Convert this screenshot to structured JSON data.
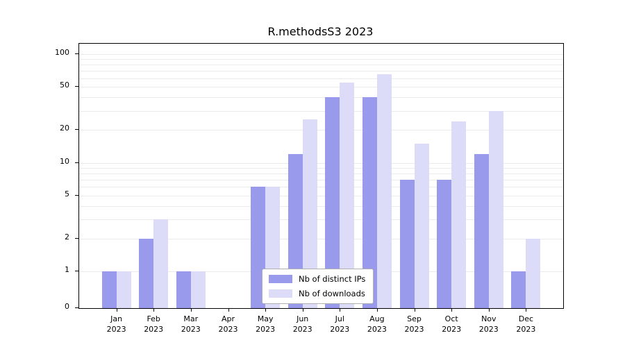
{
  "chart_data": {
    "type": "bar",
    "title": "R.methodsS3 2023",
    "year": "2023",
    "categories": [
      "Jan",
      "Feb",
      "Mar",
      "Apr",
      "May",
      "Jun",
      "Jul",
      "Aug",
      "Sep",
      "Oct",
      "Nov",
      "Dec"
    ],
    "series": [
      {
        "name": "Nb of distinct IPs",
        "color": "#9a9aec",
        "values": [
          1,
          2,
          1,
          0,
          6,
          12,
          40,
          40,
          7,
          7,
          12,
          1
        ]
      },
      {
        "name": "Nb of downloads",
        "color": "#dcdcf9",
        "values": [
          1,
          3,
          1,
          0,
          6,
          25,
          55,
          65,
          15,
          24,
          30,
          2
        ]
      }
    ],
    "yscale": "log",
    "ylim": [
      0,
      100
    ],
    "yticks": [
      0,
      1,
      2,
      5,
      10,
      20,
      50,
      100
    ],
    "grid": true,
    "grid_values": [
      1,
      2,
      3,
      4,
      5,
      6,
      7,
      8,
      9,
      10,
      20,
      30,
      40,
      50,
      60,
      70,
      80,
      90,
      100
    ],
    "gridline_color": "#ebebeb",
    "legend_position": "bottom-center"
  }
}
